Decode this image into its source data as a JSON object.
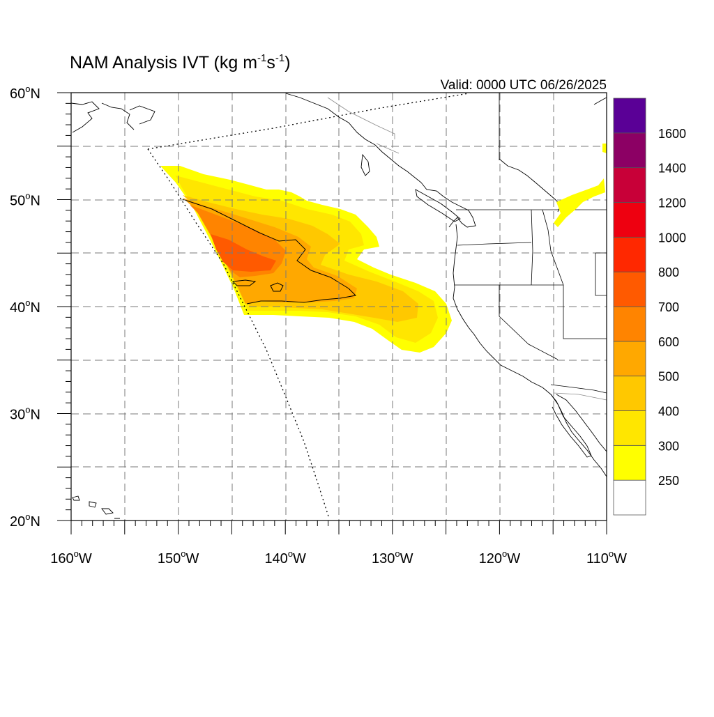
{
  "title": {
    "main": "NAM Analysis IVT (kg m",
    "exp1": "-1",
    "mid": "s",
    "exp2": "-1",
    "close": ")"
  },
  "valid_label": "Valid: 0000 UTC 06/26/2025",
  "axes": {
    "lat_labels": [
      {
        "deg": "60",
        "hem": "N",
        "value": 60
      },
      {
        "deg": "50",
        "hem": "N",
        "value": 50
      },
      {
        "deg": "40",
        "hem": "N",
        "value": 40
      },
      {
        "deg": "30",
        "hem": "N",
        "value": 30
      },
      {
        "deg": "20",
        "hem": "N",
        "value": 20
      }
    ],
    "lon_labels": [
      {
        "deg": "160",
        "hem": "W",
        "value": -160
      },
      {
        "deg": "150",
        "hem": "W",
        "value": -150
      },
      {
        "deg": "140",
        "hem": "W",
        "value": -140
      },
      {
        "deg": "130",
        "hem": "W",
        "value": -130
      },
      {
        "deg": "120",
        "hem": "W",
        "value": -120
      },
      {
        "deg": "110",
        "hem": "W",
        "value": -110
      }
    ],
    "degree_symbol": "o"
  },
  "colorbar": {
    "levels": [
      "250",
      "300",
      "400",
      "500",
      "600",
      "700",
      "800",
      "1000",
      "1200",
      "1400",
      "1600"
    ],
    "colors": [
      "#ffffff",
      "#ffff00",
      "#ffe600",
      "#ffc800",
      "#ffa800",
      "#ff8400",
      "#ff5a00",
      "#ff2800",
      "#ee0010",
      "#c80038",
      "#8c0064",
      "#5a0096"
    ]
  },
  "map_colors": {
    "level_250_300": "#ffff00",
    "level_300_400": "#ffe600",
    "level_400_500": "#ffc800",
    "level_500_600": "#ffa800",
    "level_600_700": "#ff8400",
    "level_700_800": "#ff5a00",
    "grid": "#7a7a7a",
    "coast": "#000000"
  }
}
